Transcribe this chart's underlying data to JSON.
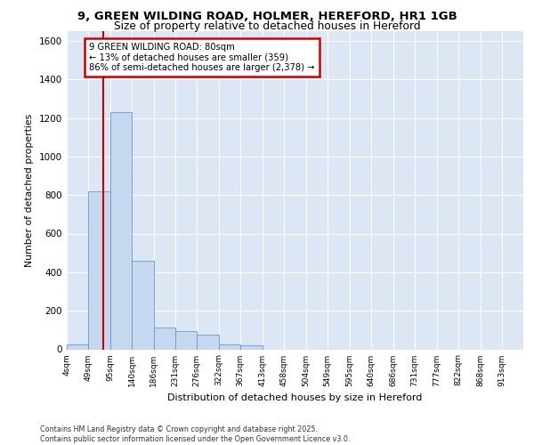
{
  "title_line1": "9, GREEN WILDING ROAD, HOLMER, HEREFORD, HR1 1GB",
  "title_line2": "Size of property relative to detached houses in Hereford",
  "xlabel": "Distribution of detached houses by size in Hereford",
  "ylabel": "Number of detached properties",
  "categories": [
    "4sqm",
    "49sqm",
    "95sqm",
    "140sqm",
    "186sqm",
    "231sqm",
    "276sqm",
    "322sqm",
    "367sqm",
    "413sqm",
    "458sqm",
    "504sqm",
    "549sqm",
    "595sqm",
    "640sqm",
    "686sqm",
    "731sqm",
    "777sqm",
    "822sqm",
    "868sqm",
    "913sqm"
  ],
  "values": [
    25,
    820,
    1230,
    460,
    115,
    95,
    75,
    25,
    20,
    0,
    0,
    0,
    0,
    0,
    0,
    0,
    0,
    0,
    0,
    0,
    0
  ],
  "bar_color": "#c5d8ef",
  "bar_edge_color": "#6699cc",
  "background_color": "#dce6f5",
  "grid_color": "#ffffff",
  "annotation_text": "9 GREEN WILDING ROAD: 80sqm\n← 13% of detached houses are smaller (359)\n86% of semi-detached houses are larger (2,378) →",
  "annotation_box_color": "#ffffff",
  "annotation_box_edge": "#cc0000",
  "vline_color": "#cc0000",
  "ylim": [
    0,
    1650
  ],
  "yticks": [
    0,
    200,
    400,
    600,
    800,
    1000,
    1200,
    1400,
    1600
  ],
  "footnote": "Contains HM Land Registry data © Crown copyright and database right 2025.\nContains public sector information licensed under the Open Government Licence v3.0.",
  "bin_edges": [
    4,
    49,
    95,
    140,
    186,
    231,
    276,
    322,
    367,
    413,
    458,
    504,
    549,
    595,
    640,
    686,
    731,
    777,
    822,
    868,
    913,
    958
  ],
  "vline_x": 80
}
